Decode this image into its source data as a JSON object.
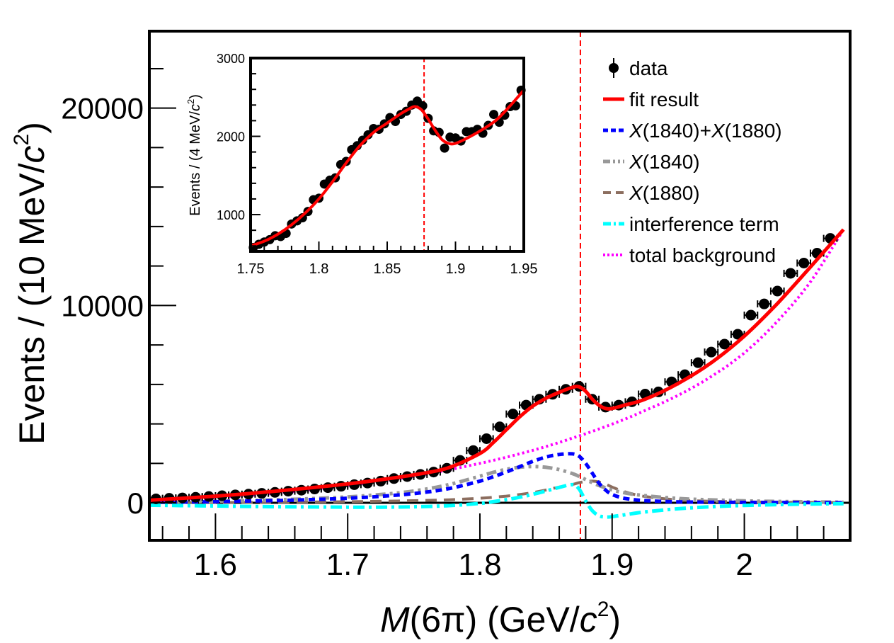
{
  "chart_data": [
    {
      "id": "main",
      "type": "scatter",
      "title": "",
      "xlabel": "M(6π) (GeV/c²)",
      "xlabel_parts": {
        "var": "M",
        "arg": "(6π)",
        "unit_pre": " (GeV/",
        "unit_c": "c",
        "unit_sup": "2",
        "unit_post": ")"
      },
      "ylabel": "Events / (10 MeV/c²)",
      "ylabel_parts": {
        "pre": "Events / (10 MeV/",
        "c": "c",
        "sup": "2",
        "post": ")"
      },
      "xlim": [
        1.55,
        2.08
      ],
      "ylim": [
        -1900,
        23900
      ],
      "xticks": [
        1.6,
        1.7,
        1.8,
        1.9,
        2.0
      ],
      "xtick_labels": [
        "1.6",
        "1.7",
        "1.8",
        "1.9",
        "2"
      ],
      "yticks": [
        0,
        10000,
        20000
      ],
      "ytick_labels": [
        "0",
        "10000",
        "20000"
      ],
      "grid": false,
      "reference_lines": [
        {
          "type": "vertical",
          "x": 1.876,
          "color": "#ff0000",
          "style": "dashed"
        },
        {
          "type": "horizontal",
          "y": 0,
          "color": "#000000",
          "style": "solid"
        }
      ],
      "legend_position": "top-right",
      "legend": [
        {
          "key": "data",
          "label": "data",
          "color": "#000000",
          "style": "marker"
        },
        {
          "key": "fit",
          "label": "fit result",
          "color": "#ff0000",
          "style": "solid"
        },
        {
          "key": "sum",
          "label_parts": [
            "X",
            "(1840)+",
            "X",
            "(1880)"
          ],
          "label": "X(1840)+X(1880)",
          "color": "#0000ff",
          "style": "dashed-short"
        },
        {
          "key": "x1840",
          "label_parts": [
            "X",
            "(1840)"
          ],
          "label": "X(1840)",
          "color": "#999999",
          "style": "dash-dot-dot"
        },
        {
          "key": "x1880",
          "label_parts": [
            "X",
            "(1880)"
          ],
          "label": "X(1880)",
          "color": "#8c6e5f",
          "style": "dashed"
        },
        {
          "key": "interf",
          "label": "interference term",
          "color": "#00ffff",
          "style": "dash-dot"
        },
        {
          "key": "bkg",
          "label": "total background",
          "color": "#ff00ff",
          "style": "dotted"
        }
      ],
      "data": {
        "x": [
          1.555,
          1.565,
          1.575,
          1.585,
          1.595,
          1.605,
          1.615,
          1.625,
          1.635,
          1.645,
          1.655,
          1.665,
          1.675,
          1.685,
          1.695,
          1.705,
          1.715,
          1.725,
          1.735,
          1.745,
          1.755,
          1.765,
          1.775,
          1.785,
          1.795,
          1.805,
          1.815,
          1.825,
          1.835,
          1.845,
          1.855,
          1.865,
          1.875,
          1.885,
          1.895,
          1.905,
          1.915,
          1.925,
          1.935,
          1.945,
          1.955,
          1.965,
          1.975,
          1.985,
          1.995,
          2.005,
          2.015,
          2.025,
          2.035,
          2.045,
          2.055,
          2.065
        ],
        "y": [
          200,
          230,
          250,
          280,
          320,
          360,
          400,
          440,
          480,
          530,
          590,
          640,
          700,
          770,
          840,
          920,
          1000,
          1100,
          1230,
          1330,
          1440,
          1560,
          1750,
          2150,
          2650,
          3250,
          3850,
          4500,
          4950,
          5250,
          5500,
          5750,
          5900,
          5250,
          4850,
          4950,
          5120,
          5510,
          5620,
          6130,
          6490,
          7100,
          7640,
          8040,
          8540,
          9510,
          10080,
          10730,
          11630,
          12150,
          12650,
          13400
        ],
        "x_err": 0.005
      },
      "curves": {
        "x": [
          1.55,
          1.575,
          1.6,
          1.625,
          1.65,
          1.675,
          1.7,
          1.725,
          1.75,
          1.775,
          1.8,
          1.81,
          1.82,
          1.83,
          1.84,
          1.85,
          1.86,
          1.87,
          1.875,
          1.88,
          1.885,
          1.89,
          1.895,
          1.9,
          1.91,
          1.925,
          1.95,
          1.975,
          2.0,
          2.025,
          2.05,
          2.075
        ],
        "fit": [
          130,
          230,
          340,
          470,
          620,
          780,
          960,
          1170,
          1420,
          1750,
          2500,
          3050,
          3700,
          4350,
          4900,
          5300,
          5600,
          5850,
          5880,
          5650,
          5250,
          4950,
          4780,
          4780,
          4960,
          5250,
          6050,
          7100,
          8450,
          10100,
          11950,
          13850
        ],
        "bkg": [
          100,
          180,
          270,
          380,
          520,
          690,
          880,
          1100,
          1350,
          1650,
          2000,
          2150,
          2310,
          2480,
          2660,
          2850,
          3060,
          3280,
          3390,
          3500,
          3620,
          3740,
          3860,
          3990,
          4250,
          4680,
          5450,
          6400,
          7600,
          9200,
          11200,
          13850
        ],
        "sum": [
          20,
          40,
          60,
          90,
          120,
          170,
          230,
          330,
          470,
          700,
          1100,
          1320,
          1560,
          1830,
          2100,
          2320,
          2450,
          2480,
          2360,
          2000,
          1500,
          1000,
          650,
          420,
          220,
          110,
          50,
          30,
          20,
          15,
          10,
          5
        ],
        "x1840": [
          30,
          50,
          80,
          110,
          160,
          220,
          300,
          420,
          600,
          900,
          1350,
          1540,
          1700,
          1800,
          1840,
          1800,
          1680,
          1480,
          1340,
          1180,
          1020,
          880,
          760,
          650,
          500,
          360,
          220,
          150,
          100,
          70,
          50,
          30
        ],
        "x1880": [
          5,
          10,
          15,
          20,
          30,
          40,
          55,
          80,
          110,
          150,
          230,
          280,
          340,
          420,
          520,
          650,
          800,
          930,
          1020,
          1080,
          1100,
          1060,
          950,
          800,
          550,
          320,
          150,
          80,
          50,
          30,
          20,
          10
        ],
        "interf": [
          -120,
          -140,
          -160,
          -180,
          -200,
          -210,
          -220,
          -220,
          -200,
          -150,
          -30,
          60,
          160,
          280,
          430,
          600,
          780,
          920,
          700,
          100,
          -400,
          -650,
          -720,
          -700,
          -600,
          -460,
          -300,
          -200,
          -130,
          -90,
          -60,
          -40
        ]
      }
    },
    {
      "id": "inset",
      "type": "scatter",
      "title": "",
      "xlabel": "",
      "ylabel": "Events / (4 MeV/c²)",
      "ylabel_parts": {
        "pre": "Events / (4 MeV/",
        "c": "c",
        "sup": "2",
        "post": ")"
      },
      "xlim": [
        1.75,
        1.95
      ],
      "ylim": [
        530,
        3000
      ],
      "xticks": [
        1.75,
        1.8,
        1.85,
        1.9,
        1.95
      ],
      "xtick_labels": [
        "1.75",
        "1.8",
        "1.85",
        "1.9",
        "1.95"
      ],
      "yticks": [
        1000,
        2000,
        3000
      ],
      "ytick_labels": [
        "1000",
        "2000",
        "3000"
      ],
      "grid": false,
      "reference_lines": [
        {
          "type": "vertical",
          "x": 1.877,
          "color": "#ff0000",
          "style": "dashed"
        }
      ],
      "data": {
        "x": [
          1.752,
          1.756,
          1.76,
          1.764,
          1.768,
          1.772,
          1.776,
          1.78,
          1.784,
          1.788,
          1.792,
          1.796,
          1.8,
          1.804,
          1.808,
          1.812,
          1.816,
          1.82,
          1.824,
          1.828,
          1.832,
          1.836,
          1.84,
          1.844,
          1.848,
          1.852,
          1.856,
          1.86,
          1.864,
          1.868,
          1.872,
          1.876,
          1.88,
          1.884,
          1.888,
          1.892,
          1.896,
          1.9,
          1.904,
          1.908,
          1.912,
          1.916,
          1.92,
          1.924,
          1.928,
          1.932,
          1.936,
          1.94,
          1.944,
          1.948
        ],
        "y": [
          580,
          620,
          650,
          680,
          730,
          720,
          760,
          880,
          920,
          960,
          1040,
          1190,
          1210,
          1390,
          1440,
          1470,
          1640,
          1680,
          1830,
          1880,
          1950,
          2020,
          2100,
          2090,
          2160,
          2240,
          2190,
          2280,
          2320,
          2400,
          2450,
          2390,
          2230,
          2070,
          2050,
          1850,
          1990,
          1980,
          1940,
          2060,
          2060,
          2090,
          2040,
          2140,
          2280,
          2180,
          2270,
          2380,
          2390,
          2590
        ]
      },
      "curves": {
        "x": [
          1.75,
          1.76,
          1.77,
          1.78,
          1.79,
          1.8,
          1.81,
          1.82,
          1.83,
          1.84,
          1.85,
          1.86,
          1.865,
          1.87,
          1.875,
          1.88,
          1.885,
          1.89,
          1.895,
          1.9,
          1.91,
          1.92,
          1.93,
          1.94,
          1.95
        ],
        "fit": [
          600,
          660,
          750,
          870,
          1020,
          1200,
          1420,
          1660,
          1880,
          2050,
          2170,
          2290,
          2340,
          2380,
          2340,
          2220,
          2080,
          1960,
          1910,
          1910,
          1990,
          2090,
          2210,
          2390,
          2590
        ]
      }
    }
  ]
}
